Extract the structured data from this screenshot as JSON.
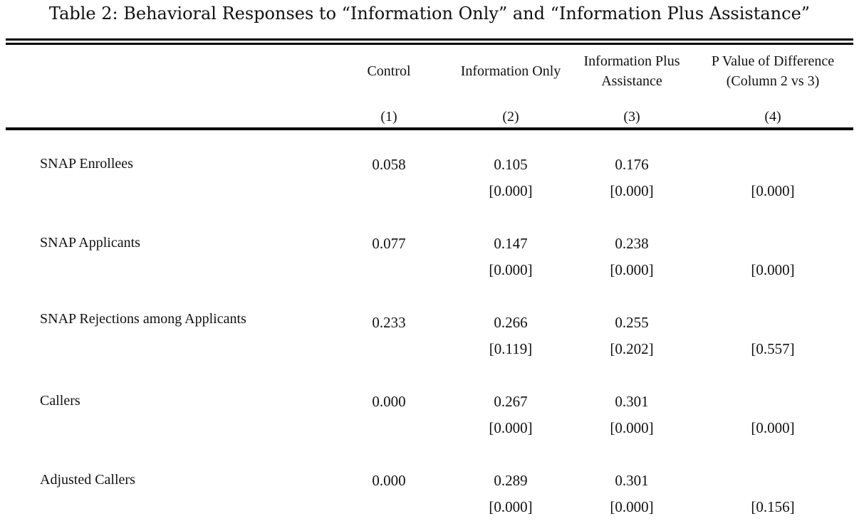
{
  "caption": "Table 2: Behavioral Responses to “Information Only” and “Information Plus Assistance”",
  "columns": [
    {
      "line1": "Control",
      "line2": "",
      "number": "(1)"
    },
    {
      "line1": "Information Only",
      "line2": "",
      "number": "(2)"
    },
    {
      "line1": "Information Plus",
      "line2": "Assistance",
      "number": "(3)"
    },
    {
      "line1": "P Value of Difference",
      "line2": "(Column 2 vs 3)",
      "number": "(4)"
    }
  ],
  "rows": [
    {
      "label": "SNAP Enrollees",
      "control": "0.058",
      "info_only": "0.105",
      "info_plus": "0.176",
      "info_only_p": "[0.000]",
      "info_plus_p": "[0.000]",
      "diff_p": "[0.000]"
    },
    {
      "label": "SNAP Applicants",
      "control": "0.077",
      "info_only": "0.147",
      "info_plus": "0.238",
      "info_only_p": "[0.000]",
      "info_plus_p": "[0.000]",
      "diff_p": "[0.000]"
    },
    {
      "label": "SNAP Rejections among Applicants",
      "control": "0.233",
      "info_only": "0.266",
      "info_plus": "0.255",
      "info_only_p": "[0.119]",
      "info_plus_p": "[0.202]",
      "diff_p": "[0.557]"
    },
    {
      "label": "Callers",
      "control": "0.000",
      "info_only": "0.267",
      "info_plus": "0.301",
      "info_only_p": "[0.000]",
      "info_plus_p": "[0.000]",
      "diff_p": "[0.000]"
    },
    {
      "label": "Adjusted Callers",
      "control": "0.000",
      "info_only": "0.289",
      "info_plus": "0.301",
      "info_only_p": "[0.000]",
      "info_plus_p": "[0.000]",
      "diff_p": "[0.156]"
    }
  ]
}
